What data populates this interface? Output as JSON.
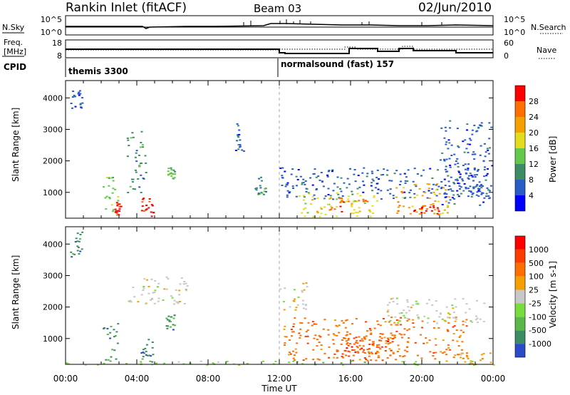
{
  "header": {
    "station": "Rankin Inlet (fitACF)",
    "beam": "Beam 03",
    "date": "02/Jun/2010"
  },
  "top_panels": {
    "nsky_label": "N.Sky",
    "nsky_ticks": [
      "10^5",
      "10^0"
    ],
    "nsearch_label": "N.Search",
    "nsearch_ticks": [
      "10^5",
      "10^0"
    ],
    "freq_label_1": "Freq.",
    "freq_label_2": "[MHz]",
    "freq_ticks": [
      "18",
      "8"
    ],
    "nave_label": "Nave",
    "nave_ticks": [
      "60",
      "0"
    ],
    "cpid_label": "CPID",
    "cpid_1": "themis 3300",
    "cpid_2": "normalsound (fast) 157"
  },
  "x_axis": {
    "label": "Time UT",
    "ticks": [
      "00:00",
      "04:00",
      "08:00",
      "12:00",
      "16:00",
      "20:00",
      "00:00"
    ]
  },
  "chart_data": [
    {
      "type": "heatmap",
      "ylabel": "Slant Range [km]",
      "ylim": [
        180,
        4550
      ],
      "yticks": [
        1000,
        2000,
        3000,
        4000
      ],
      "xlim": [
        0,
        24
      ],
      "colorbar": {
        "label": "Power [dB]",
        "ticks": [
          "4",
          "8",
          "12",
          "16",
          "20",
          "24",
          "28"
        ],
        "colors": [
          "#0000ff",
          "#2a5cc8",
          "#3c8d64",
          "#64c84a",
          "#e6dc1e",
          "#f5a000",
          "#ff6e00",
          "#ff0000"
        ]
      },
      "scatter_regions": [
        {
          "x": [
            0.2,
            0.9
          ],
          "y": [
            3600,
            4400
          ],
          "level": 1
        },
        {
          "x": [
            2.0,
            2.9
          ],
          "y": [
            250,
            1500
          ],
          "level": 3
        },
        {
          "x": [
            2.7,
            3.1
          ],
          "y": [
            300,
            700
          ],
          "level": 7
        },
        {
          "x": [
            3.4,
            4.5
          ],
          "y": [
            1000,
            3000
          ],
          "level": 2
        },
        {
          "x": [
            4.2,
            4.9
          ],
          "y": [
            250,
            900
          ],
          "level": 7
        },
        {
          "x": [
            5.7,
            6.1
          ],
          "y": [
            1400,
            1800
          ],
          "level": 3
        },
        {
          "x": [
            9.5,
            10.0
          ],
          "y": [
            2300,
            3200
          ],
          "level": 1
        },
        {
          "x": [
            10.6,
            11.2
          ],
          "y": [
            900,
            1500
          ],
          "level": 2
        },
        {
          "x": [
            12.0,
            23.8
          ],
          "y": [
            800,
            1800
          ],
          "level": 1
        },
        {
          "x": [
            13.0,
            17.5
          ],
          "y": [
            250,
            1000
          ],
          "level": 4
        },
        {
          "x": [
            14.5,
            17.0
          ],
          "y": [
            400,
            900
          ],
          "level": 6
        },
        {
          "x": [
            18.5,
            21.5
          ],
          "y": [
            300,
            1300
          ],
          "level": 5
        },
        {
          "x": [
            19.5,
            21.0
          ],
          "y": [
            300,
            600
          ],
          "level": 7
        },
        {
          "x": [
            21.0,
            23.9
          ],
          "y": [
            600,
            3300
          ],
          "level": 1
        }
      ]
    },
    {
      "type": "heatmap",
      "ylabel": "Slant Range [km]",
      "ylim": [
        180,
        4550
      ],
      "yticks": [
        1000,
        2000,
        3000,
        4000
      ],
      "xlim": [
        0,
        24
      ],
      "colorbar": {
        "label": "Velocity [m s-1]",
        "ticks": [
          "1000",
          "500",
          "100",
          "25",
          "-25",
          "-100",
          "-500",
          "-1000"
        ],
        "colors": [
          "#2a4cc8",
          "#3c8d64",
          "#5ab84a",
          "#78dc3c",
          "#c8c8c8",
          "#f5a000",
          "#ff6e00",
          "#ff3c00",
          "#ff0000"
        ]
      },
      "scatter_regions": [
        {
          "x": [
            0.2,
            0.9
          ],
          "y": [
            3600,
            4400
          ],
          "level": 1
        },
        {
          "x": [
            2.0,
            2.9
          ],
          "y": [
            300,
            1500
          ],
          "level": 1
        },
        {
          "x": [
            3.5,
            6.8
          ],
          "y": [
            2100,
            3000
          ],
          "level": 4
        },
        {
          "x": [
            4.1,
            4.9
          ],
          "y": [
            250,
            1000
          ],
          "level": 1
        },
        {
          "x": [
            5.6,
            6.1
          ],
          "y": [
            1300,
            1800
          ],
          "level": 1
        },
        {
          "x": [
            12.0,
            13.5
          ],
          "y": [
            1900,
            2800
          ],
          "level": 4
        },
        {
          "x": [
            12.2,
            22.5
          ],
          "y": [
            300,
            1700
          ],
          "level": 6
        },
        {
          "x": [
            15.0,
            19.0
          ],
          "y": [
            300,
            1200
          ],
          "level": 6
        },
        {
          "x": [
            15.5,
            18.5
          ],
          "y": [
            500,
            1100
          ],
          "level": 7
        },
        {
          "x": [
            18.0,
            23.5
          ],
          "y": [
            1500,
            2300
          ],
          "level": 4
        },
        {
          "x": [
            22.0,
            23.9
          ],
          "y": [
            200,
            600
          ],
          "level": 5
        },
        {
          "x": [
            0.0,
            24.0
          ],
          "y": [
            180,
            300
          ],
          "level": 3
        }
      ]
    }
  ]
}
